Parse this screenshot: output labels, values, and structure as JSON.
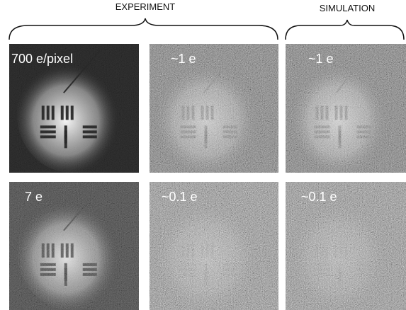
{
  "headers": [
    "EXPERIMENT",
    "SIMULATION"
  ],
  "panels": [
    {
      "label": "700 e/pixel"
    },
    {
      "label": "~1 e"
    },
    {
      "label": "~1 e"
    },
    {
      "label": "7 e"
    },
    {
      "label": "~0.1 e"
    },
    {
      "label": "~0.1 e"
    }
  ]
}
